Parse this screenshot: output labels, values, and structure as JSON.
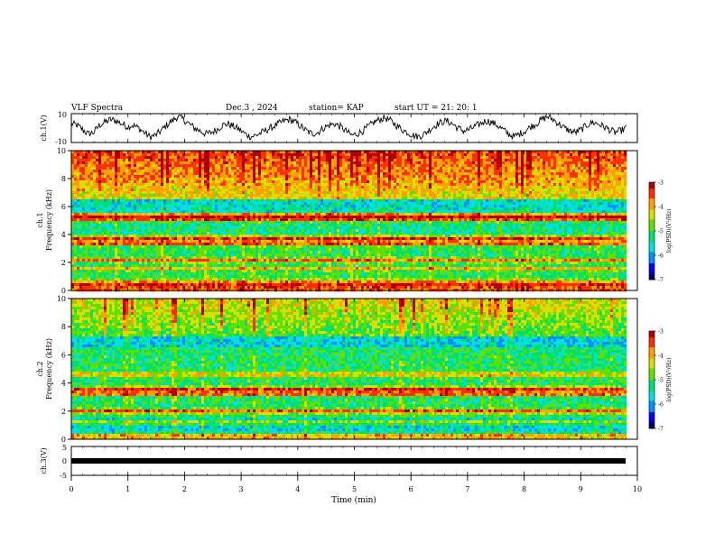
{
  "header": {
    "title": "VLF Spectra",
    "date": "Dec.3 , 2024",
    "station": "station= KAP",
    "start_ut": "start UT = 21: 20: 1"
  },
  "colors": {
    "spectrum": [
      "#00006a",
      "#0000ff",
      "#0090ff",
      "#00e0e0",
      "#00e070",
      "#60e000",
      "#d8e000",
      "#ffa000",
      "#ff3000",
      "#b00000"
    ],
    "trace": "#000000",
    "axis": "#000000"
  },
  "chart_data": [
    {
      "type": "line",
      "panel": "ch1-time-series",
      "ylabel": "ch.1(V)",
      "ylim": [
        -10,
        10
      ],
      "yticks": [
        "10",
        "-10"
      ],
      "xlim": [
        0,
        10
      ],
      "data_end_min": 9.8,
      "series": [
        {
          "values": [
            3,
            2,
            -1,
            -4,
            -3,
            2,
            4,
            6,
            5,
            3,
            1,
            2,
            0,
            -3,
            -6,
            -5,
            -2,
            2,
            5,
            8,
            6,
            3,
            0,
            -2,
            -4,
            -3,
            -1,
            2,
            3,
            1,
            -1,
            -4,
            -6,
            -5,
            -3,
            -1,
            1,
            3,
            5,
            6,
            4,
            1,
            -2,
            -4,
            -3,
            0,
            2,
            3,
            1,
            -2,
            -5,
            -4,
            -2,
            1,
            4,
            6,
            7,
            5,
            2,
            -1,
            -3,
            -5,
            -6,
            -4,
            -1,
            2,
            4,
            5,
            3,
            0,
            -2,
            -1,
            1,
            3,
            5,
            4,
            2,
            -1,
            -4,
            -6,
            -4,
            -2,
            1,
            3,
            6,
            8,
            6,
            3,
            0,
            -2,
            -3,
            -1,
            2,
            4,
            3,
            1,
            -1,
            -3,
            -2,
            0
          ]
        }
      ]
    },
    {
      "type": "heatmap",
      "panel": "ch1-spectrogram",
      "ylabel": "ch.1 Frequency (kHz)",
      "ylim": [
        0,
        10
      ],
      "xlim": [
        0,
        10
      ],
      "yticks": [
        "0",
        "2",
        "4",
        "6",
        "8",
        "10"
      ],
      "colorbar_label": "log(PSD)(V²/Hz)",
      "colorbar_range": [
        -7,
        -3
      ],
      "colorbar_ticks": [
        "-3",
        "-4",
        "-5",
        "-6",
        "-7"
      ]
    },
    {
      "type": "heatmap",
      "panel": "ch2-spectrogram",
      "ylabel": "ch.2 Frequency (kHz)",
      "ylim": [
        0,
        10
      ],
      "xlim": [
        0,
        10
      ],
      "yticks": [
        "0",
        "2",
        "4",
        "6",
        "8",
        "10"
      ],
      "colorbar_label": "log(PSD)(V²/Hz)",
      "colorbar_range": [
        -7,
        -3
      ],
      "colorbar_ticks": [
        "-3",
        "-4",
        "-5",
        "-6",
        "-7"
      ]
    },
    {
      "type": "line",
      "panel": "ch3-time-series",
      "ylabel": "ch.3(V)",
      "ylim": [
        -5,
        5
      ],
      "yticks": [
        "5",
        "0",
        "-5"
      ],
      "xlim": [
        0,
        10
      ],
      "series": [
        {
          "values": [
            -1,
            -1
          ]
        }
      ]
    }
  ],
  "x_axis": {
    "label": "Time (min)",
    "ticks": [
      "0",
      "1",
      "2",
      "3",
      "4",
      "5",
      "6",
      "7",
      "8",
      "9",
      "10"
    ]
  }
}
